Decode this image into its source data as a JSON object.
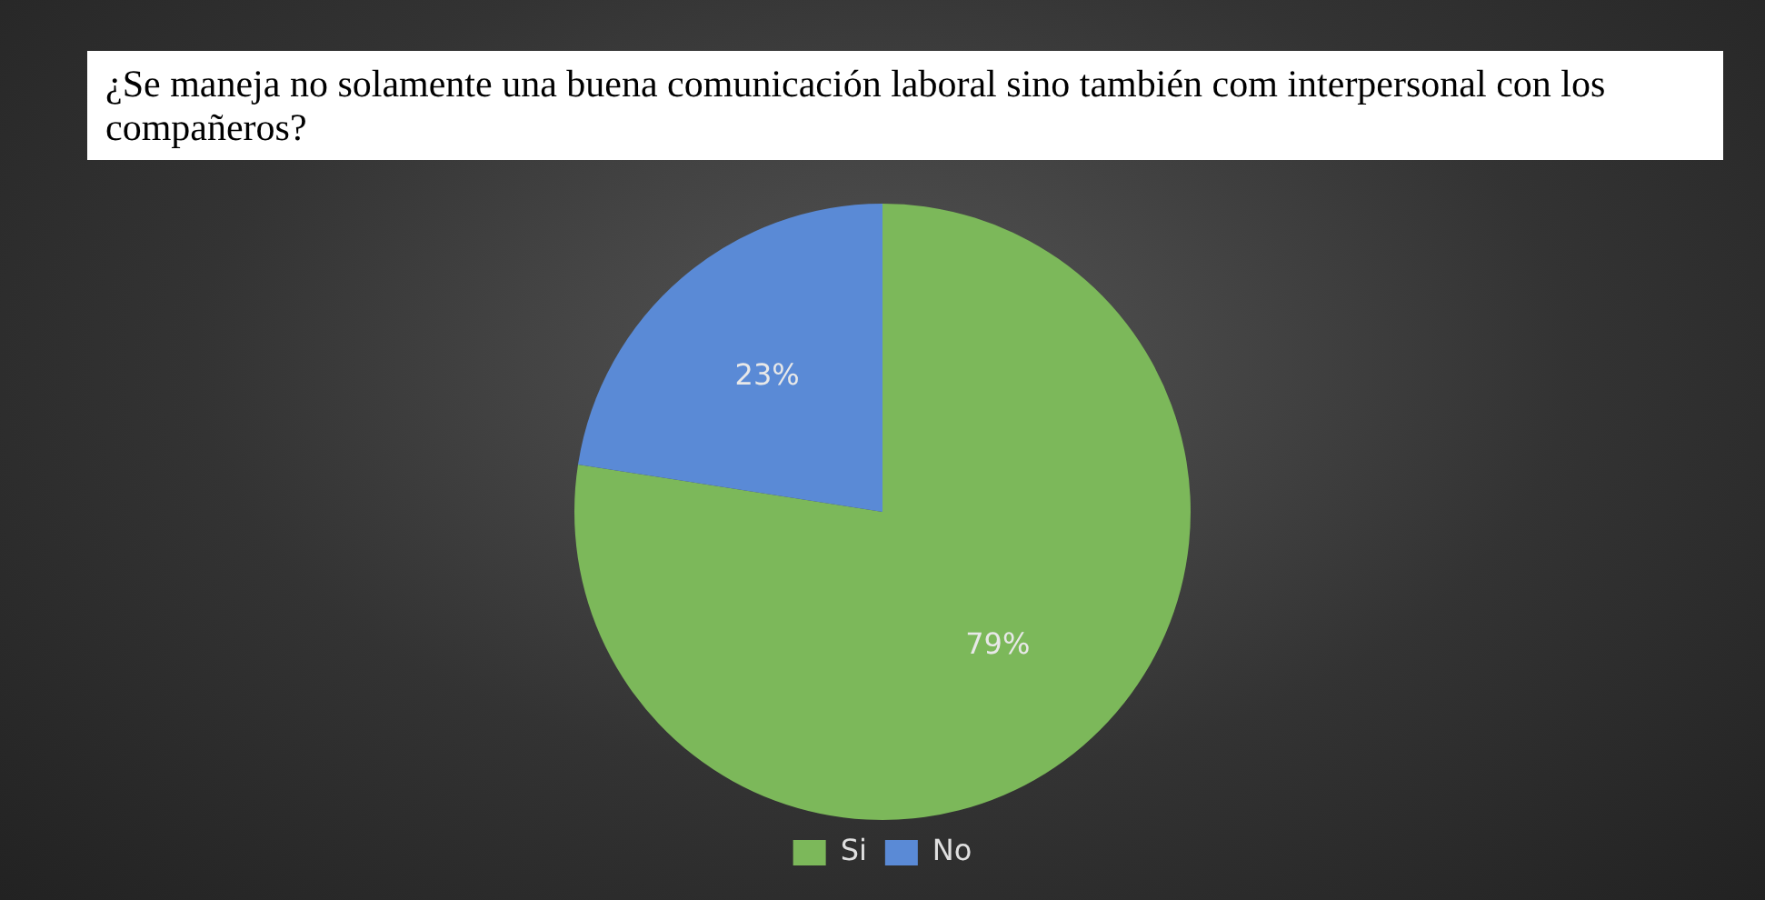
{
  "chart_data": {
    "type": "pie",
    "title": "¿Se maneja no solamente una buena comunicación laboral sino también com interpersonal con los compañeros?",
    "categories": [
      "Si",
      "No"
    ],
    "values": [
      79,
      23
    ],
    "colors": [
      "#7cb85a",
      "#5a8ad6"
    ],
    "value_labels": [
      "79%",
      "23%"
    ],
    "legend": "bottom"
  }
}
